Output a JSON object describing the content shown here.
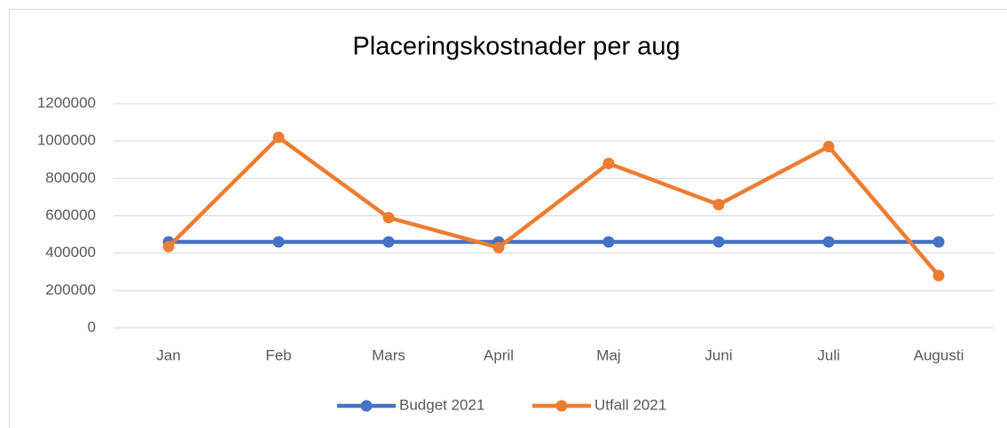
{
  "chart_data": {
    "type": "line",
    "title": "Placeringskostnader per aug",
    "categories": [
      "Jan",
      "Feb",
      "Mars",
      "April",
      "Maj",
      "Juni",
      "Juli",
      "Augusti"
    ],
    "series": [
      {
        "name": "Budget 2021",
        "color": "#4472c4",
        "values": [
          460000,
          460000,
          460000,
          460000,
          460000,
          460000,
          460000,
          460000
        ]
      },
      {
        "name": "Utfall 2021",
        "color": "#ed7d31",
        "values": [
          435000,
          1020000,
          590000,
          430000,
          880000,
          660000,
          970000,
          280000
        ]
      }
    ],
    "ylim": [
      0,
      1200000
    ],
    "yticks": [
      0,
      200000,
      400000,
      600000,
      800000,
      1000000,
      1200000
    ],
    "grid": true,
    "legend": "bottom"
  }
}
